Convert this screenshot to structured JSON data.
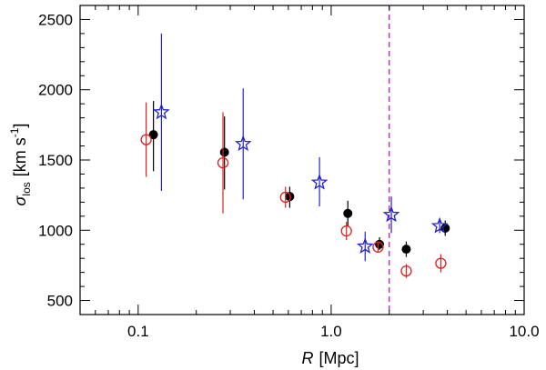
{
  "chart_data": {
    "type": "scatter",
    "xscale": "log",
    "xlim": [
      0.05,
      10.0
    ],
    "ylim": [
      400,
      2600
    ],
    "xlabel": {
      "italic": "R",
      "rest": "[Mpc]"
    },
    "ylabel": {
      "sym": "σ",
      "sub": "los",
      "rest": "[km s",
      "sup": "-1",
      "close": "]"
    },
    "xticks": [
      0.1,
      1.0,
      10.0
    ],
    "xtick_labels": [
      "0.1",
      "1.0",
      "10.0"
    ],
    "yticks": [
      500,
      1000,
      1500,
      2000,
      2500
    ],
    "ytick_labels": [
      "500",
      "1000",
      "1500",
      "2000",
      "2500"
    ],
    "vline": {
      "x": 2.0,
      "color": "#cc00cc",
      "style": "dashed"
    },
    "series": [
      {
        "name": "black-filled-circles",
        "marker": "filled-circle",
        "color": "#000000",
        "points": [
          {
            "x": 0.12,
            "y": 1680,
            "lo": 1420,
            "hi": 1920
          },
          {
            "x": 0.28,
            "y": 1555,
            "lo": 1290,
            "hi": 1810
          },
          {
            "x": 0.61,
            "y": 1240,
            "lo": 1160,
            "hi": 1310
          },
          {
            "x": 1.22,
            "y": 1120,
            "lo": 1030,
            "hi": 1210
          },
          {
            "x": 1.78,
            "y": 900,
            "lo": 860,
            "hi": 950
          },
          {
            "x": 2.45,
            "y": 865,
            "lo": 810,
            "hi": 920
          },
          {
            "x": 3.9,
            "y": 1015,
            "lo": 960,
            "hi": 1070
          }
        ]
      },
      {
        "name": "red-open-circles",
        "marker": "open-circle",
        "color": "#dd2222",
        "points": [
          {
            "x": 0.11,
            "y": 1645,
            "lo": 1380,
            "hi": 1910
          },
          {
            "x": 0.275,
            "y": 1480,
            "lo": 1120,
            "hi": 1840
          },
          {
            "x": 0.58,
            "y": 1235,
            "lo": 1160,
            "hi": 1310
          },
          {
            "x": 1.2,
            "y": 995,
            "lo": 930,
            "hi": 1060
          },
          {
            "x": 1.75,
            "y": 880,
            "lo": 840,
            "hi": 920
          },
          {
            "x": 2.45,
            "y": 710,
            "lo": 660,
            "hi": 760
          },
          {
            "x": 3.7,
            "y": 765,
            "lo": 700,
            "hi": 830
          }
        ]
      },
      {
        "name": "blue-open-stars",
        "marker": "star",
        "color": "#2222cc",
        "points": [
          {
            "x": 0.132,
            "y": 1840,
            "lo": 1280,
            "hi": 2400
          },
          {
            "x": 0.35,
            "y": 1615,
            "lo": 1220,
            "hi": 2010
          },
          {
            "x": 0.87,
            "y": 1340,
            "lo": 1170,
            "hi": 1520
          },
          {
            "x": 1.5,
            "y": 885,
            "lo": 780,
            "hi": 990
          },
          {
            "x": 2.05,
            "y": 1110,
            "lo": 980,
            "hi": 1240
          },
          {
            "x": 3.65,
            "y": 1030,
            "lo": 980,
            "hi": 1080
          }
        ]
      }
    ]
  }
}
